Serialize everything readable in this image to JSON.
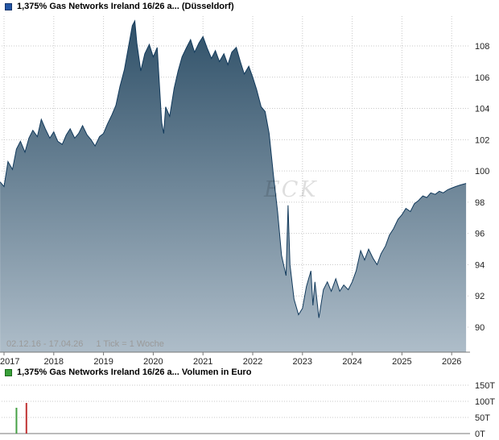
{
  "price_panel": {
    "title": "1,375% Gas Networks Ireland 16/26 a... (Düsseldorf)",
    "period_label": "02.12.16 - 17.04.26",
    "tick_label": "1 Tick = 1 Woche",
    "watermark": "ECK",
    "marker_color": "#2456a4"
  },
  "volume_panel": {
    "title": "1,375% Gas Networks Ireland 16/26 a... Volumen in Euro",
    "marker_color": "#3aa03a"
  },
  "chart_data": [
    {
      "type": "area",
      "title": "1,375% Gas Networks Ireland 16/26 a... (Düsseldorf)",
      "subtitle": "Bond price in percent, weekly ticks",
      "period": "02.12.16 - 17.04.26",
      "tick_note": "1 Tick = 1 Woche",
      "xlim": [
        2016.92,
        2026.33
      ],
      "ylim": [
        88.4,
        110
      ],
      "x_ticks": [
        2017,
        2018,
        2019,
        2020,
        2021,
        2022,
        2023,
        2024,
        2025,
        2026
      ],
      "y_ticks": [
        90,
        92,
        94,
        96,
        98,
        100,
        102,
        104,
        106,
        108
      ],
      "grid": true,
      "legend_position": "none",
      "line_color": "#123a5c",
      "fill_top": "#2f5068",
      "fill_bottom": "#aebdc9",
      "x": [
        2016.92,
        2017.0,
        2017.08,
        2017.17,
        2017.25,
        2017.33,
        2017.42,
        2017.5,
        2017.58,
        2017.67,
        2017.75,
        2017.83,
        2017.92,
        2018.0,
        2018.08,
        2018.17,
        2018.25,
        2018.33,
        2018.42,
        2018.5,
        2018.58,
        2018.67,
        2018.75,
        2018.83,
        2018.92,
        2019.0,
        2019.08,
        2019.17,
        2019.25,
        2019.33,
        2019.42,
        2019.5,
        2019.58,
        2019.63,
        2019.67,
        2019.75,
        2019.83,
        2019.92,
        2020.0,
        2020.08,
        2020.17,
        2020.21,
        2020.25,
        2020.33,
        2020.42,
        2020.5,
        2020.58,
        2020.67,
        2020.75,
        2020.83,
        2020.92,
        2021.0,
        2021.08,
        2021.17,
        2021.25,
        2021.33,
        2021.42,
        2021.5,
        2021.58,
        2021.67,
        2021.75,
        2021.83,
        2021.92,
        2022.0,
        2022.08,
        2022.17,
        2022.25,
        2022.33,
        2022.42,
        2022.5,
        2022.58,
        2022.67,
        2022.71,
        2022.75,
        2022.83,
        2022.92,
        2023.0,
        2023.08,
        2023.17,
        2023.21,
        2023.25,
        2023.33,
        2023.42,
        2023.5,
        2023.58,
        2023.67,
        2023.75,
        2023.83,
        2023.92,
        2024.0,
        2024.08,
        2024.17,
        2024.25,
        2024.33,
        2024.42,
        2024.5,
        2024.58,
        2024.67,
        2024.75,
        2024.83,
        2024.92,
        2025.0,
        2025.08,
        2025.17,
        2025.25,
        2025.33,
        2025.42,
        2025.5,
        2025.58,
        2025.67,
        2025.75,
        2025.83,
        2025.92,
        2026.0,
        2026.08,
        2026.17,
        2026.29
      ],
      "y": [
        99.3,
        99.0,
        100.6,
        100.1,
        101.4,
        101.9,
        101.2,
        102.1,
        102.6,
        102.2,
        103.3,
        102.7,
        102.1,
        102.5,
        101.9,
        101.7,
        102.3,
        102.7,
        102.1,
        102.4,
        102.9,
        102.3,
        102.0,
        101.6,
        102.2,
        102.4,
        103.0,
        103.6,
        104.2,
        105.4,
        106.5,
        107.9,
        109.3,
        109.6,
        108.2,
        106.4,
        107.5,
        108.1,
        107.3,
        107.9,
        103.1,
        102.4,
        104.1,
        103.5,
        105.3,
        106.4,
        107.3,
        107.9,
        108.4,
        107.6,
        108.2,
        108.6,
        107.9,
        107.2,
        107.7,
        107.0,
        107.5,
        106.8,
        107.6,
        107.9,
        107.0,
        106.2,
        106.7,
        106.0,
        105.2,
        104.1,
        103.8,
        102.4,
        99.6,
        97.4,
        94.6,
        93.3,
        97.8,
        94.0,
        91.8,
        90.8,
        91.2,
        92.6,
        93.6,
        91.4,
        92.9,
        90.6,
        92.4,
        92.9,
        92.3,
        93.1,
        92.3,
        92.7,
        92.4,
        92.9,
        93.6,
        94.9,
        94.3,
        95.0,
        94.4,
        94.0,
        94.7,
        95.2,
        95.9,
        96.3,
        96.9,
        97.2,
        97.6,
        97.4,
        97.9,
        98.1,
        98.4,
        98.3,
        98.6,
        98.5,
        98.7,
        98.6,
        98.8,
        98.9,
        99.0,
        99.1,
        99.2
      ]
    },
    {
      "type": "bar",
      "title": "1,375% Gas Networks Ireland 16/26 a... Volumen in Euro",
      "ylabel": "Volumen in Euro",
      "ylim": [
        0,
        160
      ],
      "y_ticks": [
        0,
        50,
        100,
        150
      ],
      "y_tick_labels": [
        "0T",
        "50T",
        "100T",
        "150T"
      ],
      "grid": true,
      "bars": [
        {
          "x": 2017.25,
          "value": 80,
          "color": "#45a045"
        },
        {
          "x": 2017.45,
          "value": 95,
          "color": "#c03333"
        }
      ]
    }
  ]
}
